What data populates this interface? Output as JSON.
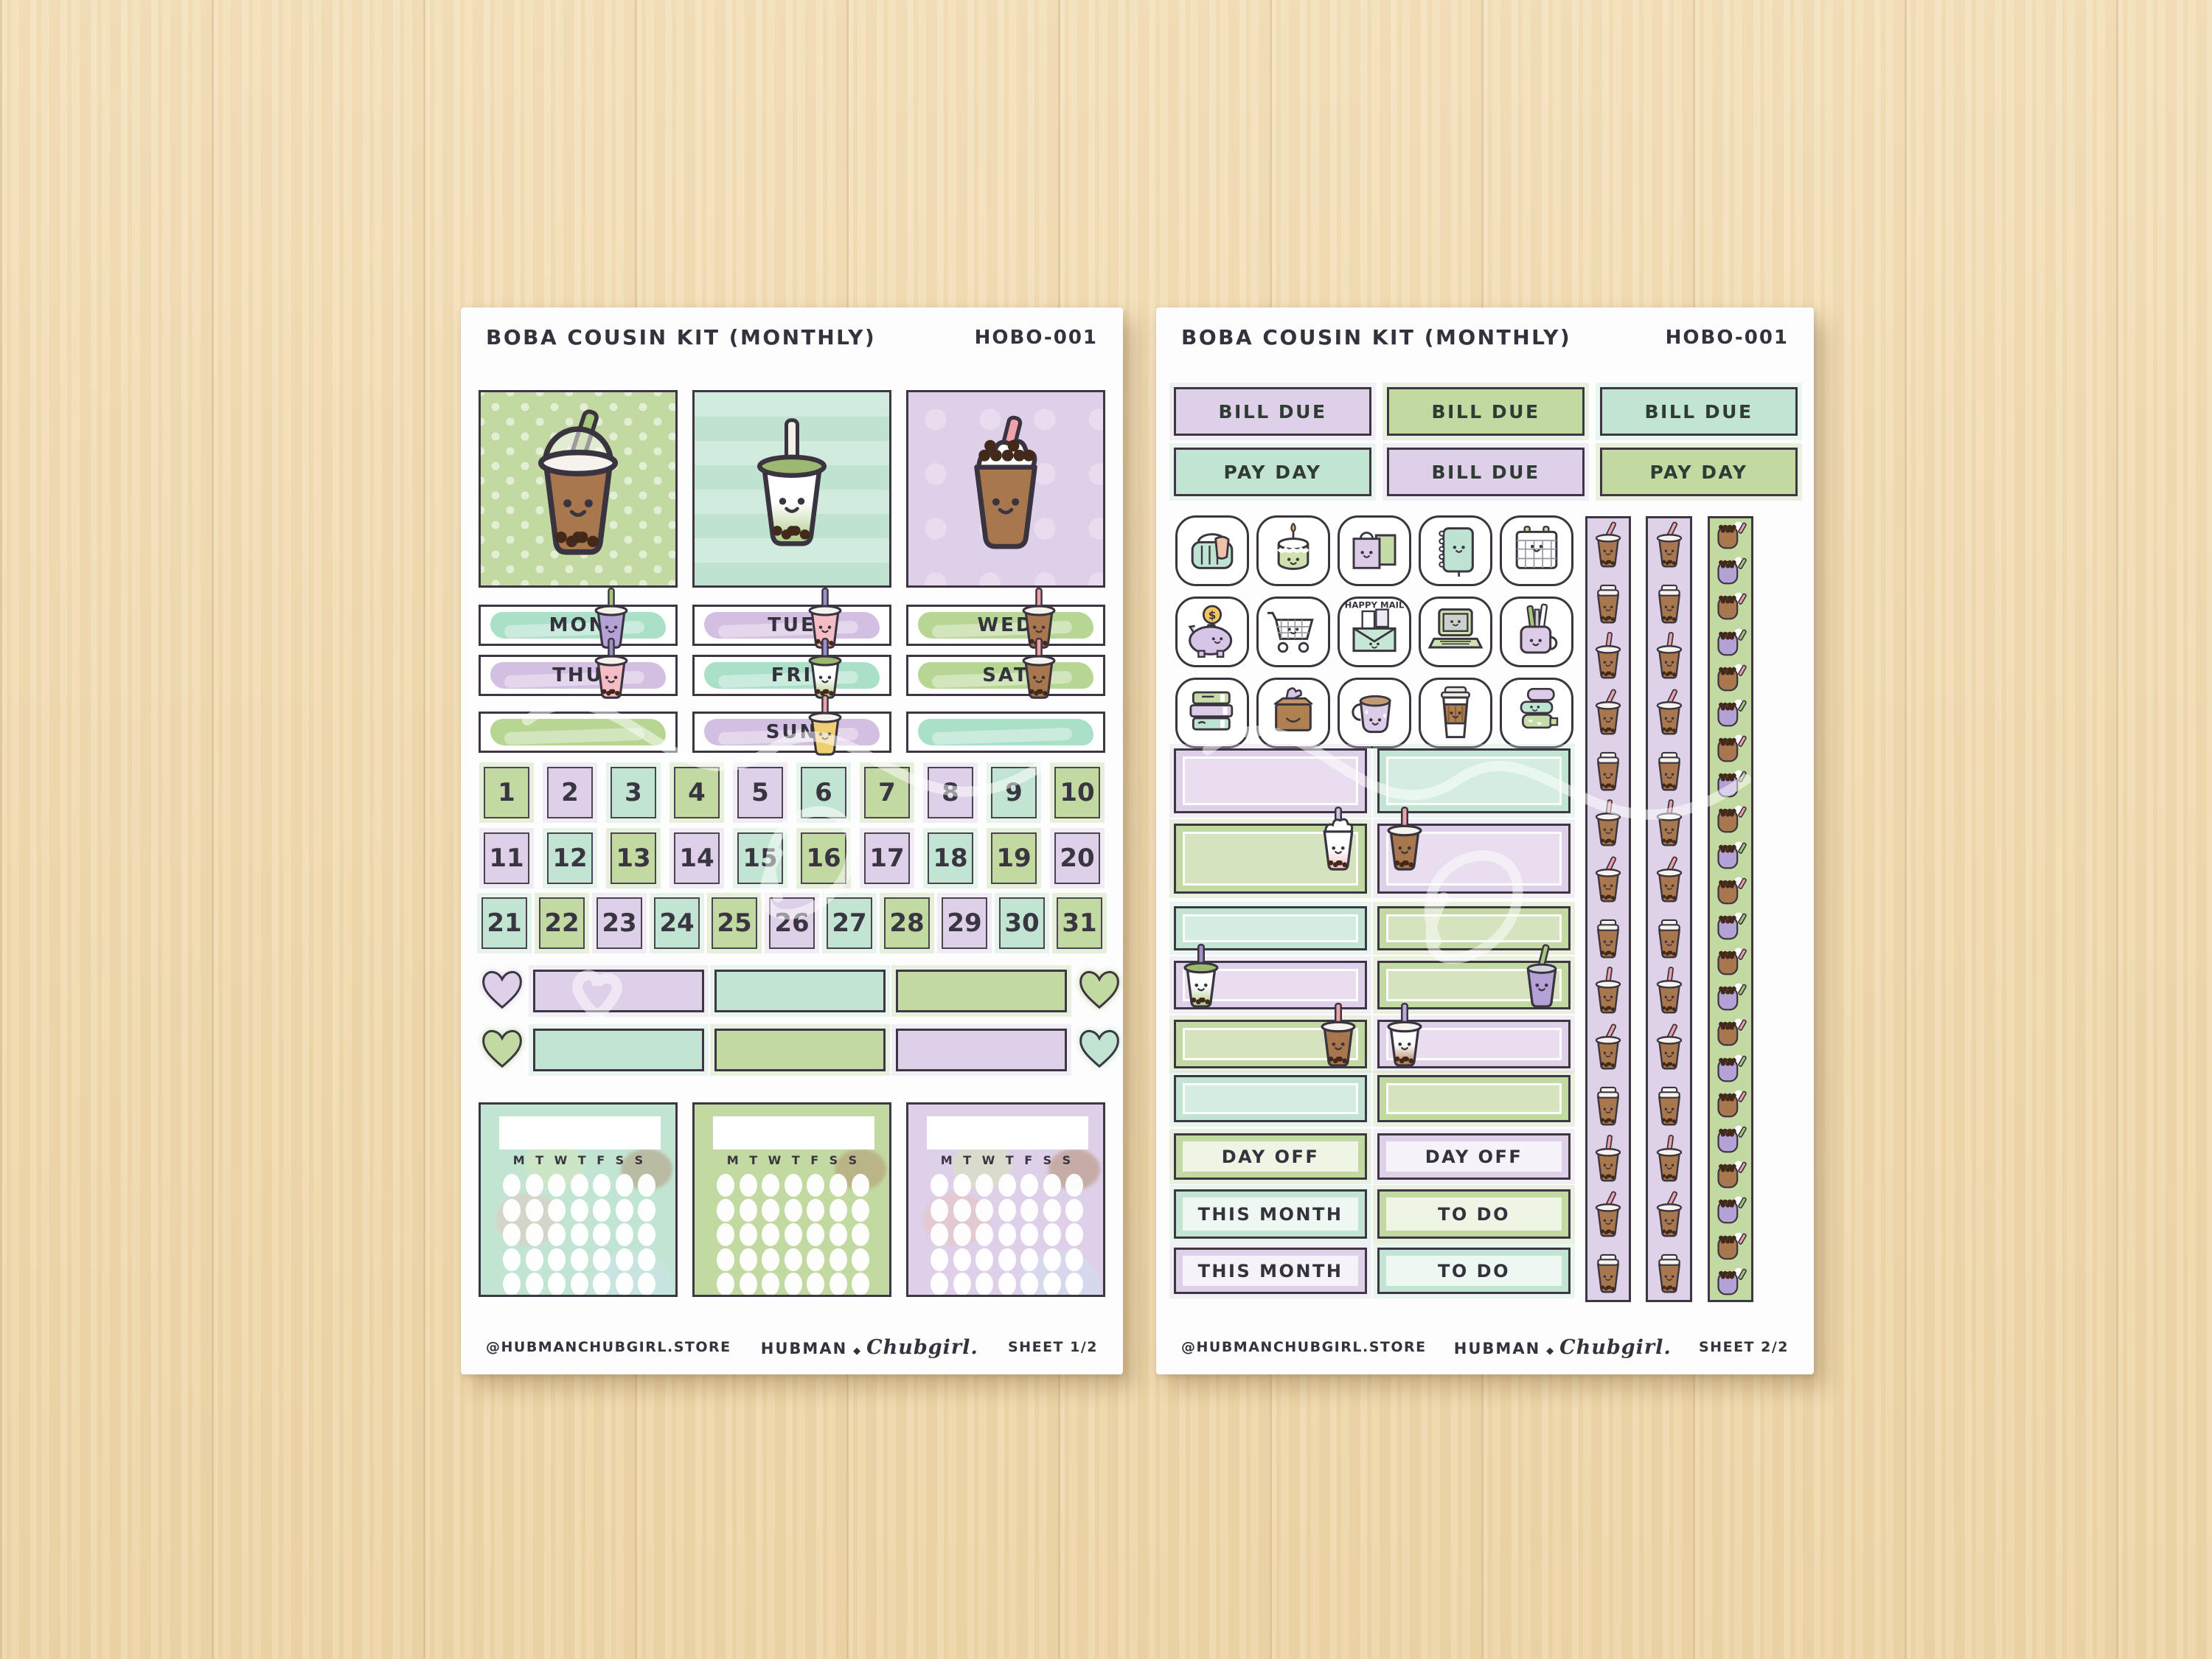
{
  "colors": {
    "green": "#c3d9a2",
    "green_brush": "#b7d693",
    "green_lite": "#e3eed2",
    "mint": "#c2e5d3",
    "mint_brush": "#aadfc8",
    "mint_lite": "#e4f4ec",
    "lavender": "#ded0e9",
    "lavender_brush": "#d3bfe2",
    "lavender_lite": "#f0e8f5",
    "band": "#e5d4eb",
    "ink": "#34323c",
    "outline": "#3c3743",
    "boba_brown": "#a9774e",
    "boba_dark": "#43291a",
    "straw_pink": "#f0a2a9",
    "straw_green": "#a6c87a",
    "straw_purple": "#9f8fc9",
    "straw_white": "#f3efe9",
    "cup_purple": "#b4a1d6",
    "cup_pink": "#f4bcc4",
    "cup_yellow": "#efcf74",
    "cup_matcha": "#a9c983",
    "wood": "#f1dcb3"
  },
  "sheet1": {
    "title": "BOBA COUSIN KIT (MONTHLY)",
    "code": "HOBO-001",
    "big_stickers": [
      {
        "name": "milk-tea-dome-cup",
        "bg": "green-dots"
      },
      {
        "name": "matcha-boba-cup",
        "bg": "mint-stripes"
      },
      {
        "name": "brown-sugar-boba-cup",
        "bg": "lavender-pattern"
      }
    ],
    "day_rows": [
      [
        {
          "label": "MON",
          "brush": "mint",
          "cup": "purple"
        },
        {
          "label": "TUE",
          "brush": "lavender",
          "cup": "pink"
        },
        {
          "label": "WED",
          "brush": "green",
          "cup": "brown"
        }
      ],
      [
        {
          "label": "THU",
          "brush": "lavender",
          "cup": "pink"
        },
        {
          "label": "FRI",
          "brush": "mint",
          "cup": "matcha"
        },
        {
          "label": "SAT",
          "brush": "green",
          "cup": "brown"
        }
      ],
      [
        {
          "label": "",
          "brush": "green",
          "cup": ""
        },
        {
          "label": "SUN",
          "brush": "lavender",
          "cup": "yellow"
        },
        {
          "label": "",
          "brush": "mint",
          "cup": ""
        }
      ]
    ],
    "date_rows": [
      10,
      10,
      11
    ],
    "dates": [
      {
        "n": "1",
        "c": "green"
      },
      {
        "n": "2",
        "c": "lavender"
      },
      {
        "n": "3",
        "c": "mint"
      },
      {
        "n": "4",
        "c": "green"
      },
      {
        "n": "5",
        "c": "lavender"
      },
      {
        "n": "6",
        "c": "mint"
      },
      {
        "n": "7",
        "c": "green"
      },
      {
        "n": "8",
        "c": "lavender"
      },
      {
        "n": "9",
        "c": "mint"
      },
      {
        "n": "10",
        "c": "green"
      },
      {
        "n": "11",
        "c": "lavender"
      },
      {
        "n": "12",
        "c": "mint"
      },
      {
        "n": "13",
        "c": "green"
      },
      {
        "n": "14",
        "c": "lavender"
      },
      {
        "n": "15",
        "c": "mint"
      },
      {
        "n": "16",
        "c": "green"
      },
      {
        "n": "17",
        "c": "lavender"
      },
      {
        "n": "18",
        "c": "mint"
      },
      {
        "n": "19",
        "c": "green"
      },
      {
        "n": "20",
        "c": "lavender"
      },
      {
        "n": "21",
        "c": "mint"
      },
      {
        "n": "22",
        "c": "green"
      },
      {
        "n": "23",
        "c": "lavender"
      },
      {
        "n": "24",
        "c": "mint"
      },
      {
        "n": "25",
        "c": "green"
      },
      {
        "n": "26",
        "c": "lavender"
      },
      {
        "n": "27",
        "c": "mint"
      },
      {
        "n": "28",
        "c": "green"
      },
      {
        "n": "29",
        "c": "lavender"
      },
      {
        "n": "30",
        "c": "mint"
      },
      {
        "n": "31",
        "c": "green"
      }
    ],
    "hearts_rows": [
      {
        "left": "lavender",
        "bars": [
          "lavender",
          "mint",
          "green"
        ],
        "right": "green"
      },
      {
        "left": "green",
        "bars": [
          "mint",
          "green",
          "lavender"
        ],
        "right": "mint"
      }
    ],
    "trackers": [
      {
        "bg": "mint"
      },
      {
        "bg": "green"
      },
      {
        "bg": "lavender"
      }
    ],
    "week_letters": [
      "M",
      "T",
      "W",
      "T",
      "F",
      "S",
      "S"
    ],
    "footer": {
      "store": "@HUBMANCHUBGIRL.STORE",
      "brand_print": "HUBMAN",
      "brand_sep": "◆",
      "brand_script": "Chubgirl.",
      "sheet_label": "SHEET 1/2"
    }
  },
  "sheet2": {
    "title": "BOBA COUSIN KIT (MONTHLY)",
    "code": "HOBO-001",
    "label_rows": [
      [
        {
          "text": "BILL DUE",
          "c": "lavender"
        },
        {
          "text": "BILL DUE",
          "c": "green"
        },
        {
          "text": "BILL DUE",
          "c": "mint"
        }
      ],
      [
        {
          "text": "PAY DAY",
          "c": "mint"
        },
        {
          "text": "BILL DUE",
          "c": "lavender"
        },
        {
          "text": "PAY DAY",
          "c": "green"
        }
      ]
    ],
    "icons": [
      {
        "name": "laundry-basket"
      },
      {
        "name": "birthday-candle"
      },
      {
        "name": "shopping-bags"
      },
      {
        "name": "planner-notebook"
      },
      {
        "name": "calendar"
      },
      {
        "name": "piggy-bank",
        "coin": "$"
      },
      {
        "name": "shopping-cart"
      },
      {
        "name": "happy-mail",
        "label": "HAPPY MAIL"
      },
      {
        "name": "laptop"
      },
      {
        "name": "stationery-mug"
      },
      {
        "name": "book-stack"
      },
      {
        "name": "package-box"
      },
      {
        "name": "mug"
      },
      {
        "name": "coffee-cup"
      },
      {
        "name": "washi-tape"
      }
    ],
    "box_rows": [
      [
        {
          "c": "lavender",
          "style": "frame"
        },
        {
          "c": "mint",
          "style": "frame"
        }
      ],
      [
        {
          "c": "green",
          "style": "frame",
          "cup": "strawberry",
          "side": "right"
        },
        {
          "c": "lavender",
          "style": "frame",
          "cup": "brown",
          "side": "left"
        }
      ],
      [
        {
          "c": "mint",
          "style": "frame"
        },
        {
          "c": "green",
          "style": "frame"
        }
      ],
      [
        {
          "c": "lavender",
          "style": "frame",
          "cup": "matcha",
          "side": "left"
        },
        {
          "c": "green",
          "style": "frame",
          "cup": "taro",
          "side": "right"
        }
      ],
      [
        {
          "c": "green",
          "style": "frame",
          "cup": "brown",
          "side": "right"
        },
        {
          "c": "lavender",
          "style": "frame",
          "cup": "iced",
          "side": "left"
        }
      ],
      [
        {
          "c": "mint",
          "style": "frame"
        },
        {
          "c": "green",
          "style": "frame"
        }
      ],
      [
        {
          "text": "DAY OFF",
          "c": "green"
        },
        {
          "text": "DAY OFF",
          "c": "lavender"
        }
      ],
      [
        {
          "text": "THIS MONTH",
          "c": "mint"
        },
        {
          "text": "TO DO",
          "c": "green"
        }
      ],
      [
        {
          "text": "THIS MONTH",
          "c": "lavender"
        },
        {
          "text": "TO DO",
          "c": "mint"
        }
      ]
    ],
    "strips": {
      "lavender_cups": 14,
      "green_cups": 22
    },
    "footer": {
      "store": "@HUBMANCHUBGIRL.STORE",
      "brand_print": "HUBMAN",
      "brand_sep": "◆",
      "brand_script": "Chubgirl.",
      "sheet_label": "SHEET 2/2"
    }
  }
}
